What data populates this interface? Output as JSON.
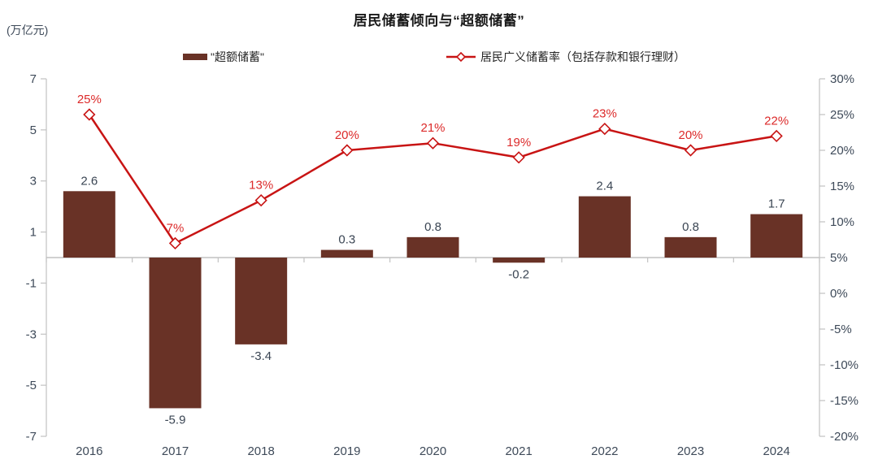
{
  "chart_data": {
    "type": "combo-bar-line",
    "title": "居民储蓄倾向与“超额储蓄”",
    "unit_label": "(万亿元)",
    "categories": [
      "2016",
      "2017",
      "2018",
      "2019",
      "2020",
      "2021",
      "2022",
      "2023",
      "2024"
    ],
    "series": [
      {
        "name": "\"超额储蓄\"",
        "type": "bar",
        "axis": "left",
        "values": [
          2.6,
          -5.9,
          -3.4,
          0.3,
          0.8,
          -0.2,
          2.4,
          0.8,
          1.7
        ],
        "labels": [
          "2.6",
          "-5.9",
          "-3.4",
          "0.3",
          "0.8",
          "-0.2",
          "2.4",
          "0.8",
          "1.7"
        ]
      },
      {
        "name": "居民广义储蓄率（包括存款和银行理财）",
        "type": "line",
        "axis": "right",
        "marker": "open-diamond",
        "values": [
          25,
          7,
          13,
          20,
          21,
          19,
          23,
          20,
          22
        ],
        "labels": [
          "25%",
          "7%",
          "13%",
          "20%",
          "21%",
          "19%",
          "23%",
          "20%",
          "22%"
        ]
      }
    ],
    "left_axis": {
      "min": -7,
      "max": 7,
      "ticks": [
        7,
        5,
        3,
        1,
        -1,
        -3,
        -5,
        -7
      ]
    },
    "right_axis": {
      "min": -20,
      "max": 30,
      "tick_values": [
        30,
        25,
        20,
        15,
        10,
        5,
        0,
        -5,
        -10,
        -15,
        -20
      ],
      "tick_labels": [
        "30%",
        "25%",
        "20%",
        "15%",
        "10%",
        "5%",
        "0%",
        "-5%",
        "-10%",
        "-15%",
        "-20%"
      ]
    },
    "legend_position": "top",
    "grid": false,
    "colors": {
      "bar": "#693226",
      "line": "#c81414",
      "marker_fill": "#ffffff",
      "pct_label": "#dc2a2a",
      "value_label": "#3a4553",
      "axis_text": "#3e4a59",
      "axis_line": "#c2c2c2",
      "title_text": "#1a1a1a",
      "legend_text": "#262626"
    }
  }
}
